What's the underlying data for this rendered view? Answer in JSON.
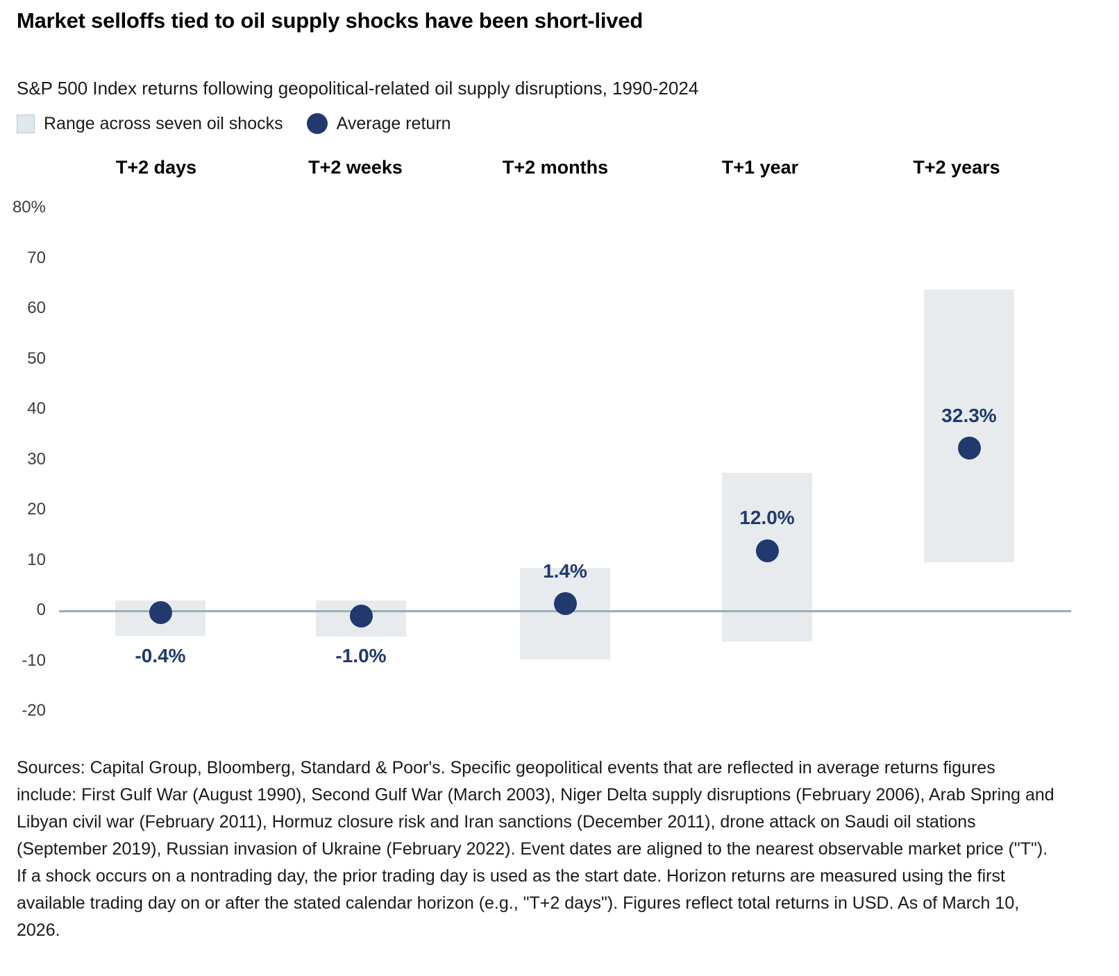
{
  "header": {
    "title": "Market selloffs tied to oil supply shocks have been short-lived",
    "subtitle": "S&P 500 Index returns following geopolitical-related oil supply disruptions, 1990-2024",
    "legend": [
      {
        "label": "Range across seven oil shocks"
      },
      {
        "label": "Average return"
      }
    ]
  },
  "chart_data": {
    "type": "bar",
    "subtype": "floating-range-bars-with-average-dot",
    "categories": [
      "T+2 days",
      "T+2 weeks",
      "T+2 months",
      "T+1 year",
      "T+2 years"
    ],
    "series": [
      {
        "name": "Range across seven oil shocks",
        "type": "range",
        "ranges": [
          [
            -5.0,
            2.1
          ],
          [
            -5.1,
            2.1
          ],
          [
            -9.7,
            8.6
          ],
          [
            -6.0,
            27.5
          ],
          [
            9.7,
            63.8
          ]
        ]
      },
      {
        "name": "Average return",
        "type": "point",
        "values": [
          -0.4,
          -1.0,
          1.4,
          12.0,
          32.3
        ],
        "labels": [
          "-0.4%",
          "-1.0%",
          "1.4%",
          "12.0%",
          "32.3%"
        ]
      }
    ],
    "title": "Market selloffs tied to oil supply shocks have been short-lived",
    "subtitle": "S&P 500 Index returns following geopolitical-related oil supply disruptions, 1990-2024",
    "xlabel": "",
    "ylabel": "",
    "ylim": [
      -20,
      80
    ],
    "yticks": [
      80,
      70,
      60,
      50,
      40,
      30,
      20,
      10,
      0,
      -10,
      -20
    ],
    "ytick_labels": [
      "80%",
      "70",
      "60",
      "50",
      "40",
      "30",
      "20",
      "10",
      "0",
      "-10",
      "-20"
    ],
    "baseline": 0,
    "grid": false,
    "legend_position": "top-left"
  },
  "colors": {
    "navy": "#21396d",
    "range_fill": "#e7ebee",
    "legend_swatch_fill": "#dfe8ec",
    "legend_swatch_border": "#bac8d0",
    "zero_line": "#9badb6",
    "tick_text": "#3d3d3d",
    "text": "#1a1a1a"
  },
  "footer": {
    "text": "Sources: Capital Group, Bloomberg, Standard & Poor's. Specific geopolitical events that are reflected in average returns figures include: First Gulf War (August 1990), Second Gulf War (March 2003), Niger Delta supply disruptions (February 2006), Arab Spring and Libyan civil war (February 2011), Hormuz closure risk and Iran sanctions (December 2011), drone attack on Saudi oil stations (September 2019), Russian invasion of Ukraine (February 2022). Event dates are aligned to the nearest observable market price (\"T\"). If a shock occurs on a nontrading day, the prior trading day is used as the start date. Horizon returns are measured using the first available trading day on or after the stated calendar horizon (e.g., \"T+2 days\"). Figures reflect total returns in USD. As of March 10, 2026."
  }
}
